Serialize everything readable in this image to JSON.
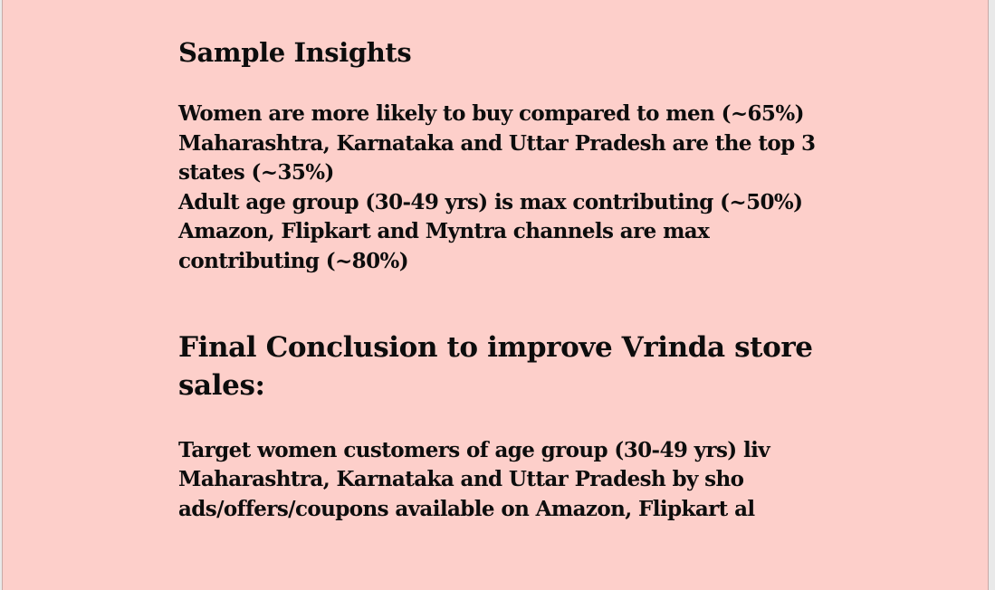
{
  "sample_insights": {
    "heading": "Sample Insights",
    "lines": [
      "Women are more likely to buy compared to men (~65%)",
      "Maharashtra, Karnataka and Uttar Pradesh are the top 3",
      "states (~35%)",
      "Adult age group (30-49 yrs) is max contributing (~50%)",
      "Amazon, Flipkart and Myntra channels are max",
      "contributing (~80%)"
    ]
  },
  "final_conclusion": {
    "heading_line1": "Final Conclusion to improve Vrinda store",
    "heading_line2": "sales:",
    "lines": [
      "Target women customers of age group (30-49 yrs) liv",
      "Maharashtra, Karnataka and Uttar Pradesh by sho",
      "ads/offers/coupons available on Amazon, Flipkart al"
    ]
  }
}
